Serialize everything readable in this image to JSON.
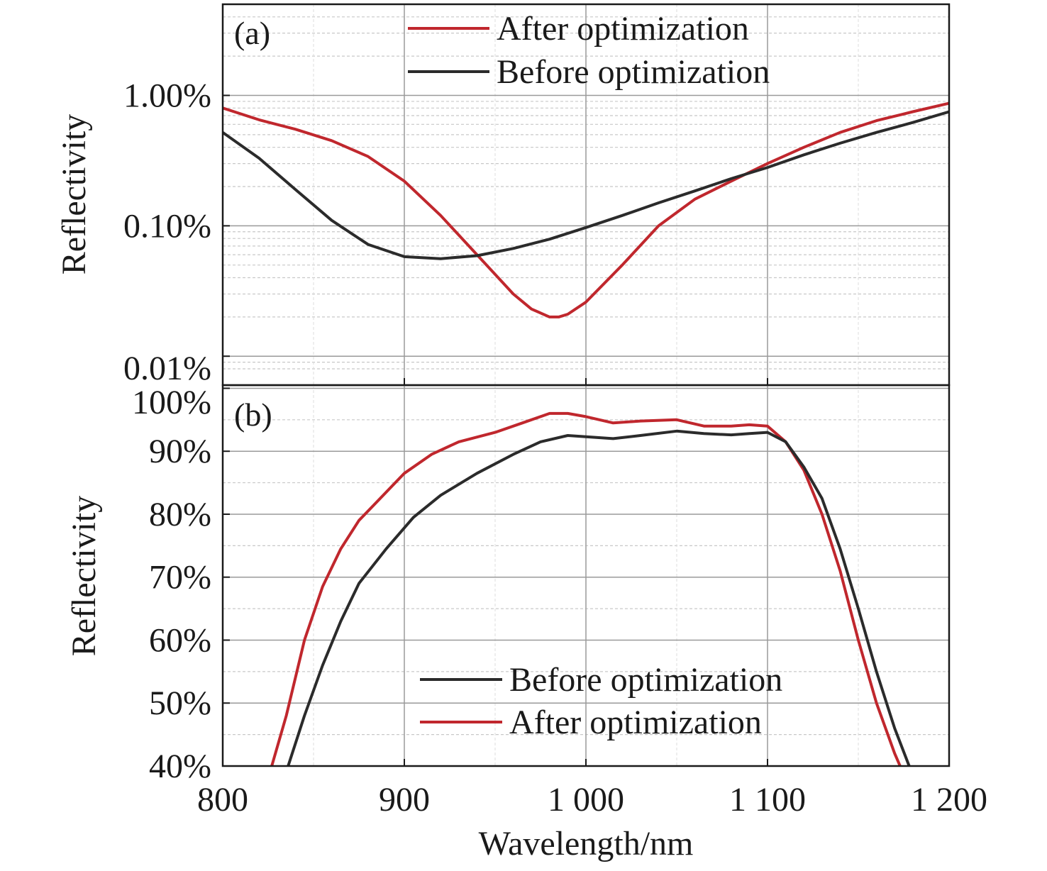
{
  "figure": {
    "xlabel": "Wavelength/nm",
    "x_tick_labels": [
      "800",
      "900",
      "1 000",
      "1 100",
      "1 200"
    ],
    "xlim": [
      800,
      1200
    ]
  },
  "colors": {
    "after": "#c0272d",
    "before": "#2b2b2b",
    "frame": "#1a1a1a",
    "grid": "#9a9a9a"
  },
  "chart_data": [
    {
      "panel_label": "(a)",
      "type": "line",
      "ylabel": "Reflectivity",
      "y_scale": "log",
      "ylim": [
        0.006,
        5.0
      ],
      "y_ticks": [
        0.01,
        0.1,
        1.0
      ],
      "y_tick_labels": [
        "0.01%",
        "0.10%",
        "1.00%"
      ],
      "legend": {
        "placement": "top-center",
        "entries": [
          "After optimization",
          "Before optimization"
        ]
      },
      "series": [
        {
          "name": "After optimization",
          "color": "#c0272d",
          "x": [
            800,
            820,
            840,
            860,
            880,
            900,
            920,
            940,
            960,
            970,
            980,
            985,
            990,
            1000,
            1020,
            1040,
            1060,
            1080,
            1100,
            1120,
            1140,
            1160,
            1180,
            1200
          ],
          "y": [
            0.8,
            0.65,
            0.55,
            0.45,
            0.34,
            0.22,
            0.12,
            0.06,
            0.03,
            0.023,
            0.02,
            0.02,
            0.021,
            0.026,
            0.05,
            0.1,
            0.16,
            0.22,
            0.3,
            0.4,
            0.52,
            0.64,
            0.75,
            0.87
          ]
        },
        {
          "name": "Before optimization",
          "color": "#2b2b2b",
          "x": [
            800,
            820,
            840,
            860,
            880,
            900,
            920,
            940,
            960,
            980,
            1000,
            1020,
            1040,
            1060,
            1080,
            1100,
            1120,
            1140,
            1160,
            1180,
            1200
          ],
          "y": [
            0.52,
            0.33,
            0.19,
            0.11,
            0.072,
            0.058,
            0.056,
            0.059,
            0.067,
            0.079,
            0.097,
            0.12,
            0.15,
            0.185,
            0.23,
            0.28,
            0.35,
            0.43,
            0.52,
            0.62,
            0.75
          ]
        }
      ]
    },
    {
      "panel_label": "(b)",
      "type": "line",
      "ylabel": "Reflectivity",
      "ylim": [
        40,
        100.5
      ],
      "y_ticks": [
        40,
        50,
        60,
        70,
        80,
        90,
        100
      ],
      "y_tick_labels": [
        "40%",
        "50%",
        "60%",
        "70%",
        "80%",
        "90%",
        "100%"
      ],
      "legend": {
        "placement": "bottom-center",
        "entries": [
          "Before optimization",
          "After optimization"
        ]
      },
      "series": [
        {
          "name": "After optimization",
          "color": "#c0272d",
          "x": [
            827,
            835,
            845,
            855,
            865,
            875,
            885,
            900,
            915,
            930,
            950,
            965,
            980,
            990,
            1000,
            1015,
            1030,
            1050,
            1065,
            1080,
            1090,
            1100,
            1110,
            1120,
            1130,
            1140,
            1150,
            1160,
            1170,
            1173
          ],
          "y": [
            40,
            48,
            60,
            68.5,
            74.5,
            79,
            82,
            86.5,
            89.5,
            91.5,
            93,
            94.5,
            96,
            96,
            95.5,
            94.5,
            94.8,
            95,
            94,
            94,
            94.2,
            94,
            91.5,
            87,
            80,
            71,
            60,
            50,
            42,
            40
          ]
        },
        {
          "name": "Before optimization",
          "color": "#2b2b2b",
          "x": [
            836,
            845,
            855,
            865,
            875,
            890,
            905,
            920,
            940,
            960,
            975,
            990,
            1000,
            1015,
            1030,
            1050,
            1065,
            1080,
            1090,
            1100,
            1110,
            1120,
            1130,
            1140,
            1150,
            1160,
            1170,
            1178
          ],
          "y": [
            40,
            48,
            56,
            63,
            69,
            74.5,
            79.5,
            83,
            86.5,
            89.5,
            91.5,
            92.5,
            92.3,
            92,
            92.5,
            93.2,
            92.8,
            92.6,
            92.8,
            93,
            91.5,
            87.5,
            82.5,
            74.5,
            65,
            55,
            46,
            40
          ]
        }
      ]
    }
  ]
}
